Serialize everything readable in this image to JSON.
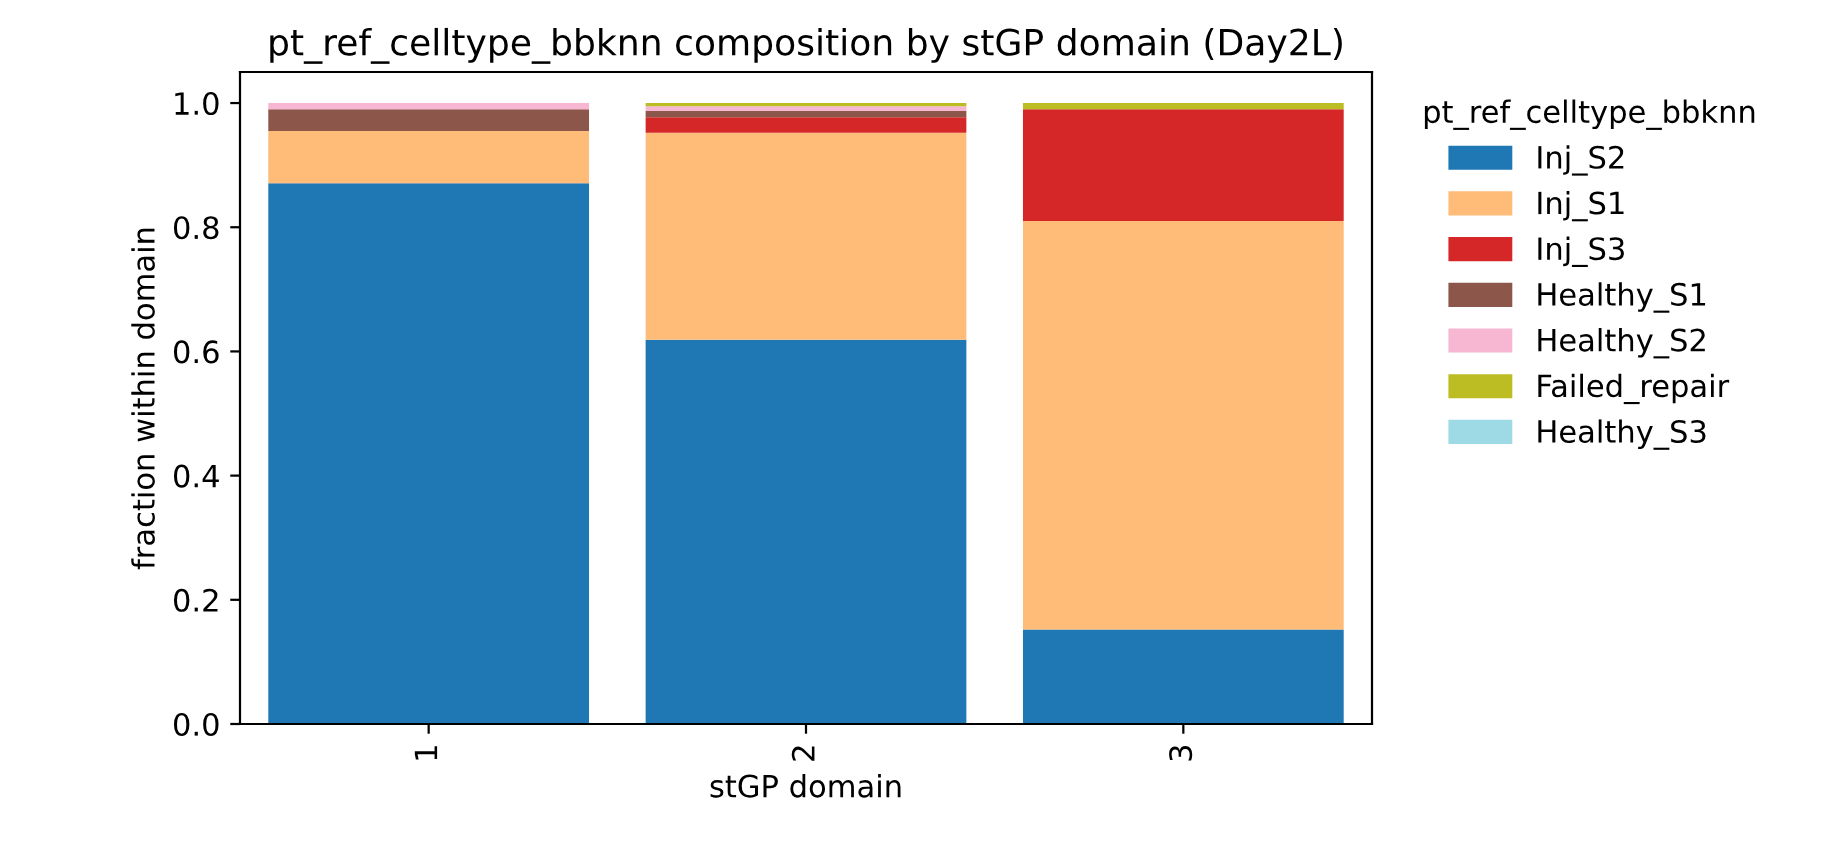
{
  "chart_data": {
    "type": "bar",
    "title": "pt_ref_celltype_bbknn composition by stGP domain (Day2L)",
    "xlabel": "stGP domain",
    "ylabel": "fraction within domain",
    "legend_title": "pt_ref_celltype_bbknn",
    "categories": [
      "1",
      "2",
      "3"
    ],
    "stacked": true,
    "legend": "right",
    "ylim": [
      0,
      1.05
    ],
    "yticks": [
      {
        "value": 0,
        "label": "0.0"
      },
      {
        "value": 0.2,
        "label": "0.2"
      },
      {
        "value": 0.4,
        "label": "0.4"
      },
      {
        "value": 0.6,
        "label": "0.6"
      },
      {
        "value": 0.8,
        "label": "0.8"
      },
      {
        "value": 1.0,
        "label": "1.0"
      }
    ],
    "series": [
      {
        "name": "Inj_S2",
        "color": "#1f77b4",
        "values": [
          0.871,
          0.619,
          0.152
        ]
      },
      {
        "name": "Inj_S1",
        "color": "#ffbb78",
        "values": [
          0.084,
          0.333,
          0.658
        ]
      },
      {
        "name": "Inj_S3",
        "color": "#d62728",
        "values": [
          0,
          0.025,
          0.18
        ]
      },
      {
        "name": "Healthy_S1",
        "color": "#8c564b",
        "values": [
          0.035,
          0.01,
          0
        ]
      },
      {
        "name": "Healthy_S2",
        "color": "#f7b6d2",
        "values": [
          0.01,
          0.008,
          0
        ]
      },
      {
        "name": "Failed_repair",
        "color": "#bcbd22",
        "values": [
          0,
          0.005,
          0.01
        ]
      },
      {
        "name": "Healthy_S3",
        "color": "#9edae5",
        "values": [
          0,
          0,
          0
        ]
      }
    ]
  }
}
